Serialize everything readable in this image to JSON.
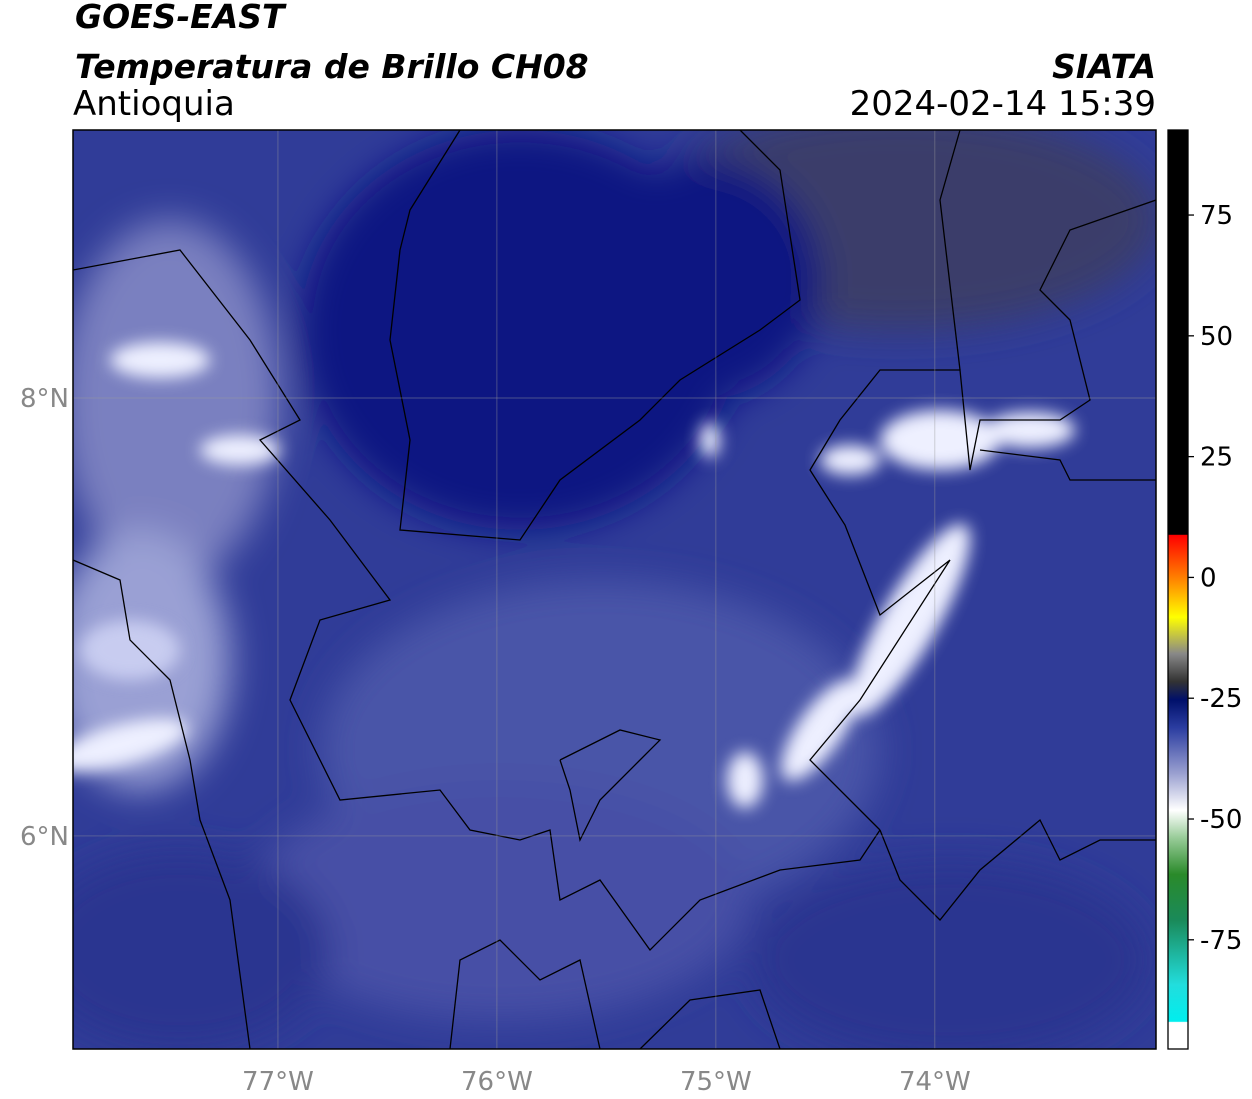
{
  "header": {
    "title": "GOES-EAST",
    "subtitle": "Temperatura de Brillo CH08",
    "region": "Antioquia",
    "source": "SIATA",
    "datetime": "2024-02-14 15:39"
  },
  "map": {
    "xlim": [
      -77.936,
      -72.99
    ],
    "ylim": [
      5.027,
      9.224
    ],
    "lon_ticks": [
      {
        "value": -77,
        "label": "77°W"
      },
      {
        "value": -76,
        "label": "76°W"
      },
      {
        "value": -75,
        "label": "75°W"
      },
      {
        "value": -74,
        "label": "74°W"
      }
    ],
    "lat_ticks": [
      {
        "value": 8,
        "label": "8°N"
      },
      {
        "value": 6,
        "label": "6°N"
      }
    ]
  },
  "colorbar": {
    "lim": [
      -97.6,
      92.6
    ],
    "ticks": [
      75,
      50,
      25,
      0,
      -25,
      -50,
      -75
    ]
  }
}
